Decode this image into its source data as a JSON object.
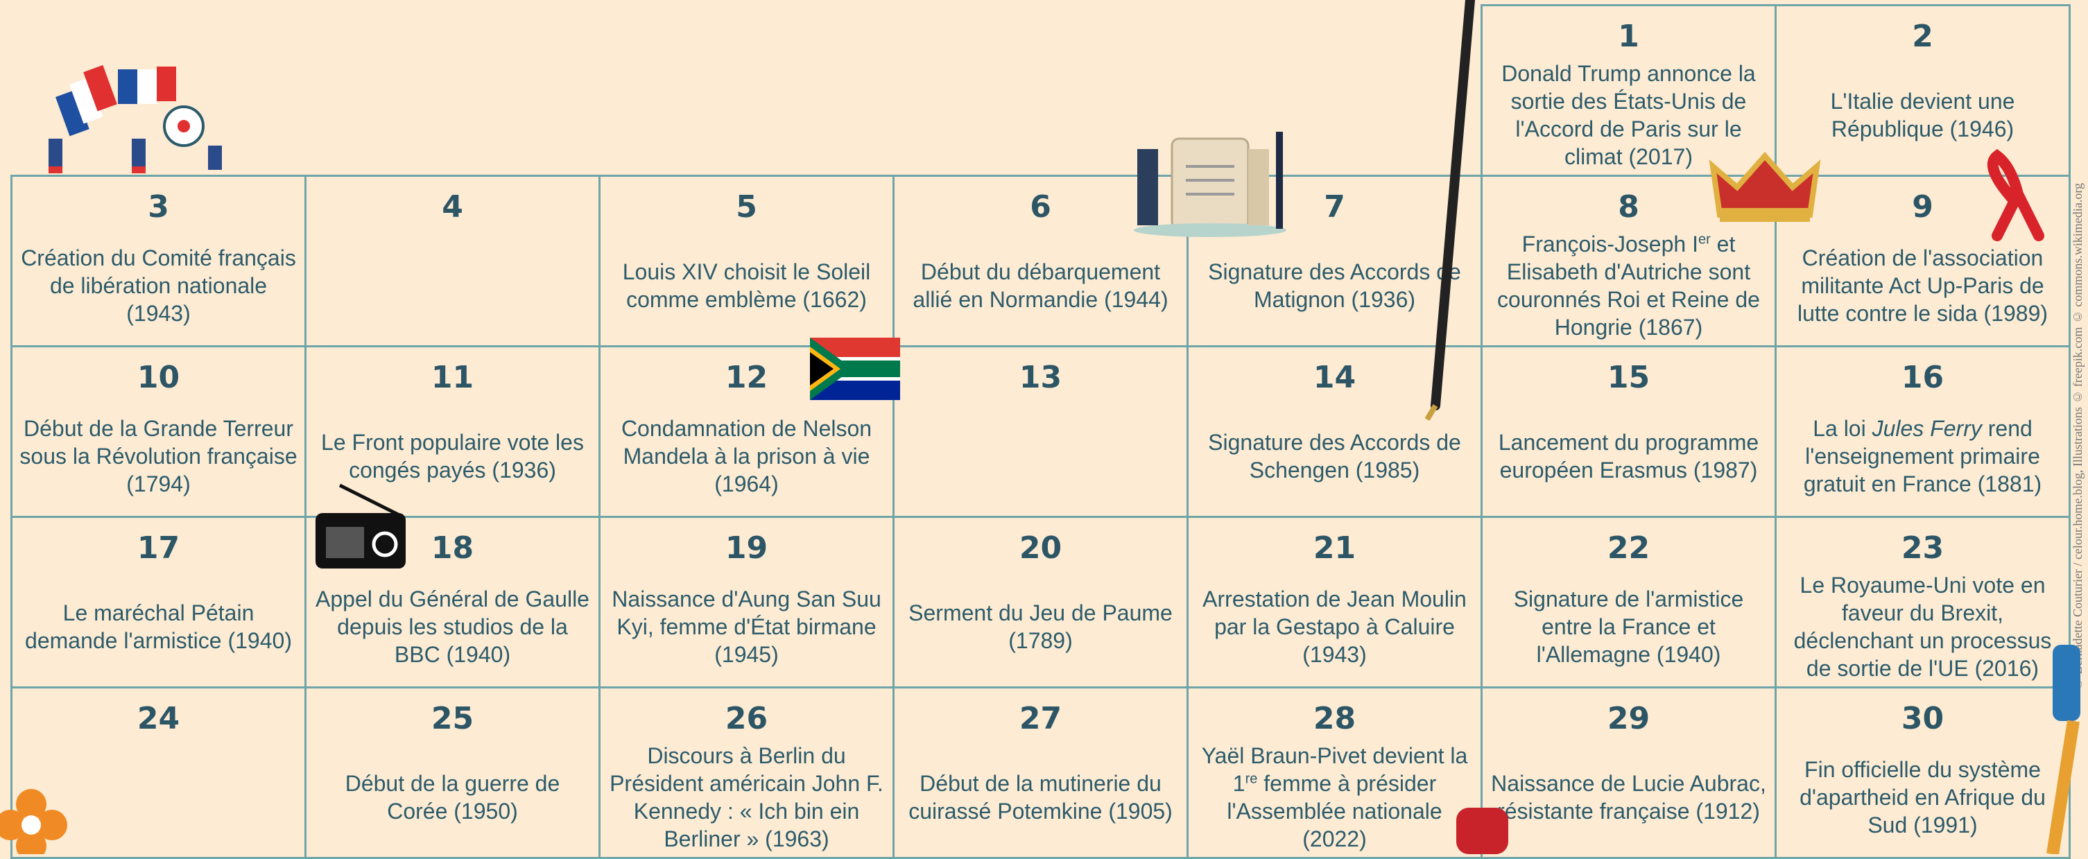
{
  "calendar": {
    "days": [
      {
        "day": 1,
        "text": [
          "Donald Trump annonce la sortie des États-Unis de l'Accord de Paris sur le climat (2017)"
        ]
      },
      {
        "day": 2,
        "text": [
          "L'Italie devient une République (1946)"
        ]
      },
      {
        "day": 3,
        "text": [
          "Création du Comité français de libération nationale (1943)"
        ]
      },
      {
        "day": 4
      },
      {
        "day": 5,
        "text": [
          "Louis XIV choisit le Soleil comme emblème (1662)"
        ]
      },
      {
        "day": 6,
        "text": [
          "Début du débarquement allié en Normandie (1944)"
        ]
      },
      {
        "day": 7,
        "text": [
          "Signature des Accords de Matignon (1936)"
        ]
      },
      {
        "day": 8,
        "text": [
          "François-Joseph I",
          {
            "sup": "er"
          },
          " et Elisabeth d'Autriche sont couronnés Roi et Reine de Hongrie (1867)"
        ]
      },
      {
        "day": 9,
        "text": [
          "Création de l'association militante Act Up-Paris de lutte contre le sida (1989)"
        ]
      },
      {
        "day": 10,
        "text": [
          "Début de la Grande Terreur sous la Révolution française (1794)"
        ]
      },
      {
        "day": 11,
        "text": [
          "Le Front populaire vote les congés payés (1936)"
        ]
      },
      {
        "day": 12,
        "text": [
          "Condamnation de Nelson Mandela à la prison à vie (1964)"
        ]
      },
      {
        "day": 13
      },
      {
        "day": 14,
        "text": [
          "Signature des Accords de Schengen (1985)"
        ]
      },
      {
        "day": 15,
        "text": [
          "Lancement du programme européen Erasmus (1987)"
        ]
      },
      {
        "day": 16,
        "text": [
          "La loi ",
          {
            "em": "Jules Ferry"
          },
          " rend l'enseignement primaire gratuit en France (1881)"
        ]
      },
      {
        "day": 17,
        "text": [
          "Le maréchal Pétain demande l'armistice (1940)"
        ]
      },
      {
        "day": 18,
        "text": [
          "Appel du Général de Gaulle depuis les studios de la BBC (1940)"
        ]
      },
      {
        "day": 19,
        "text": [
          "Naissance d'Aung San Suu Kyi, femme d'État birmane (1945)"
        ]
      },
      {
        "day": 20,
        "text": [
          "Serment du Jeu de Paume (1789)"
        ]
      },
      {
        "day": 21,
        "text": [
          "Arrestation de Jean Moulin par la Gestapo à Caluire (1943)"
        ]
      },
      {
        "day": 22,
        "text": [
          "Signature de l'armistice entre la France et l'Allemagne (1940)"
        ]
      },
      {
        "day": 23,
        "text": [
          "Le Royaume-Uni vote en faveur du Brexit, déclenchant un processus de sortie de l'UE (2016)"
        ]
      },
      {
        "day": 24
      },
      {
        "day": 25,
        "text": [
          "Début de la guerre de Corée (1950)"
        ]
      },
      {
        "day": 26,
        "text": [
          "Discours à Berlin du Président américain John F. Kennedy : « Ich bin ein Berliner » (1963)"
        ]
      },
      {
        "day": 27,
        "text": [
          "Début de la mutinerie du cuirassé Potemkine (1905)"
        ]
      },
      {
        "day": 28,
        "text": [
          "Yaël Braun-Pivet devient la 1",
          {
            "sup": "re"
          },
          " femme à présider l'Assemblée nationale (2022)"
        ]
      },
      {
        "day": 29,
        "text": [
          "Naissance de Lucie Aubrac, résistante française (1912)"
        ]
      },
      {
        "day": 30,
        "text": [
          "Fin officielle du système d'apartheid en Afrique du Sud (1991)"
        ]
      }
    ]
  },
  "credit": "© Bernadette Couturier / celour.home.blog, Illustrations © freepik.com © commons.wikimedia.org"
}
